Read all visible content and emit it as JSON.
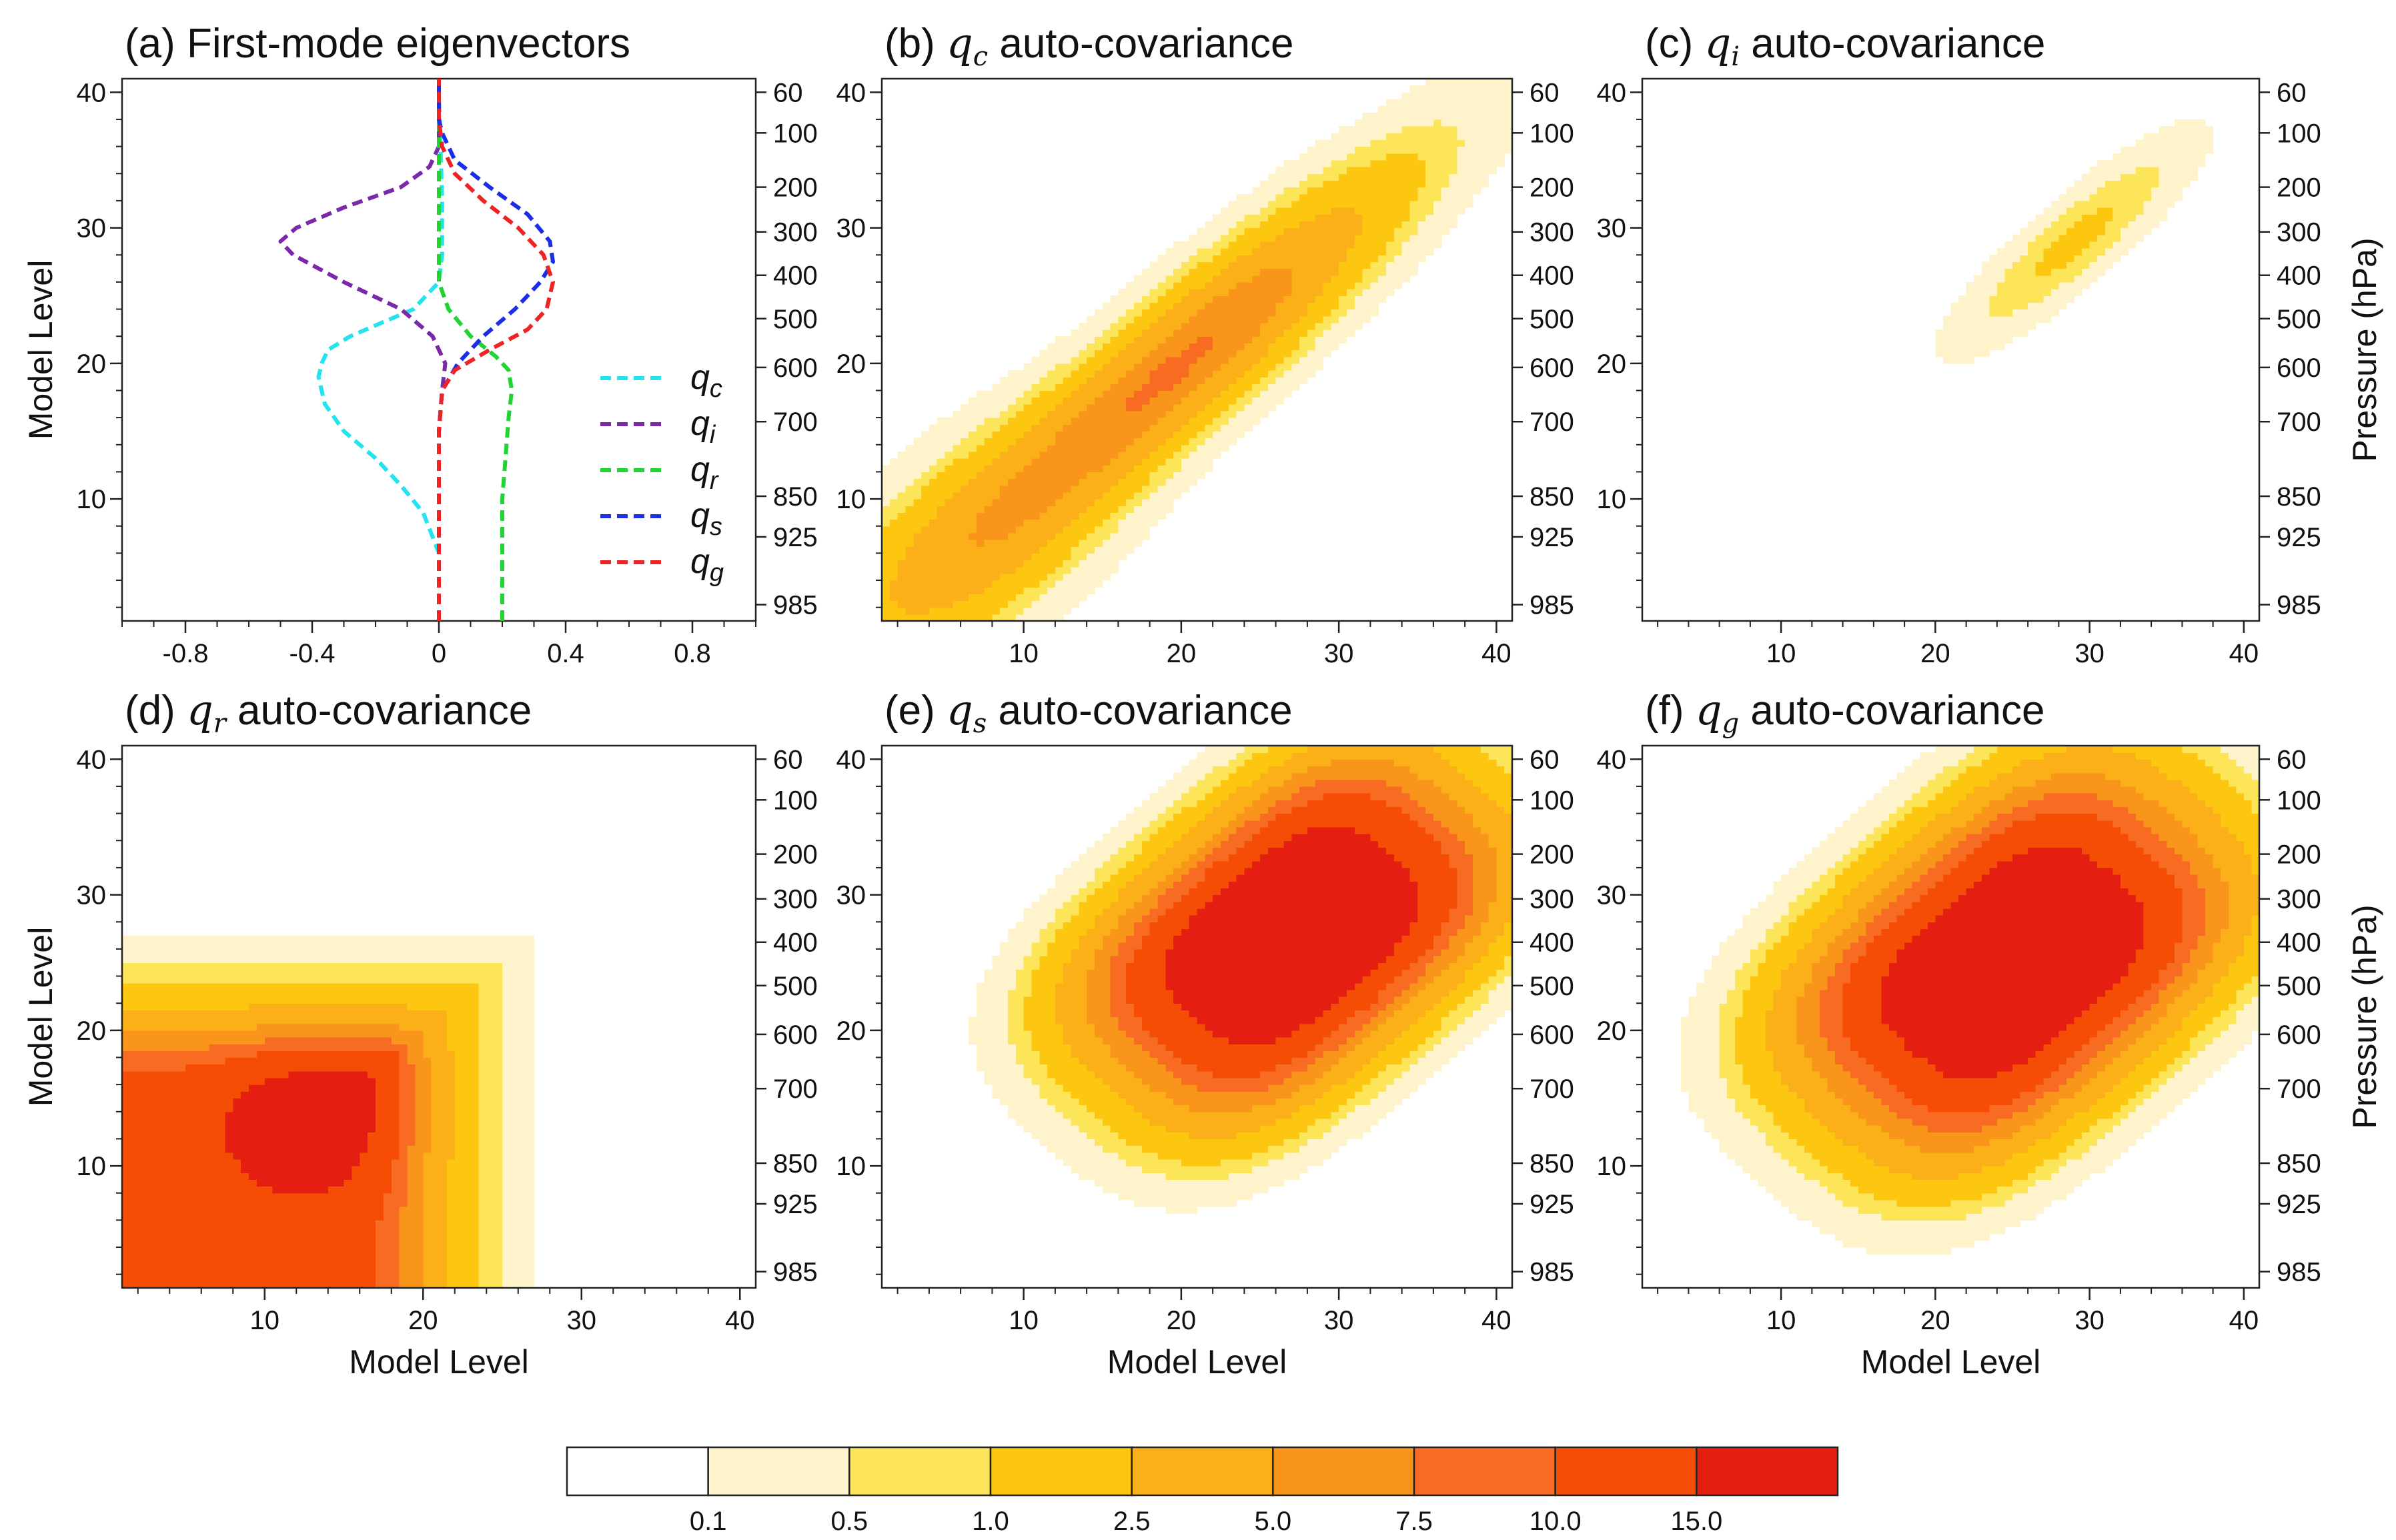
{
  "chart_data": [
    {
      "id": "a",
      "type": "line",
      "title_prefix": "(a)",
      "title": "First-mode eigenvectors",
      "xlabel": "",
      "ylabel": "Model Level",
      "xlim": [
        -1.0,
        1.0
      ],
      "ylim": [
        1,
        41
      ],
      "xticks": [
        "-0.8",
        "-0.4",
        "0",
        "0.4",
        "0.8"
      ],
      "xtick_values": [
        -0.8,
        -0.4,
        0,
        0.4,
        0.8
      ],
      "yticks": [
        "10",
        "20",
        "30",
        "40"
      ],
      "ytick_values": [
        10,
        20,
        30,
        40
      ],
      "right_axis_labels": [
        "60",
        "100",
        "200",
        "300",
        "400",
        "500",
        "600",
        "700",
        "850",
        "925",
        "985"
      ],
      "right_axis_levels": [
        40,
        37,
        33,
        29.7,
        26.5,
        23.3,
        19.7,
        15.7,
        10.2,
        7.2,
        2.2
      ],
      "series": [
        {
          "name": "q",
          "sub": "c",
          "color": "#22e3ee",
          "x": [
            0,
            0,
            -0.05,
            -0.12,
            -0.2,
            -0.3,
            -0.36,
            -0.38,
            -0.37,
            -0.35,
            -0.28,
            -0.18,
            -0.08,
            0,
            0.01,
            0.01,
            0
          ],
          "y": [
            1,
            6,
            9,
            11,
            13,
            15,
            17,
            19,
            20,
            21,
            22,
            23,
            24,
            26,
            28,
            32,
            40
          ]
        },
        {
          "name": "q",
          "sub": "i",
          "color": "#7a2aa8",
          "x": [
            0,
            0,
            0.01,
            0.02,
            -0.02,
            -0.12,
            -0.3,
            -0.46,
            -0.5,
            -0.45,
            -0.3,
            -0.12,
            -0.03,
            0,
            0
          ],
          "y": [
            1,
            15,
            18,
            20,
            22,
            24,
            26,
            28,
            29,
            30,
            31.5,
            33,
            34.5,
            36,
            41
          ]
        },
        {
          "name": "q",
          "sub": "r",
          "color": "#22d432",
          "x": [
            0.2,
            0.2,
            0.2,
            0.21,
            0.22,
            0.23,
            0.22,
            0.18,
            0.1,
            0.03,
            0,
            0,
            0
          ],
          "y": [
            1,
            6,
            10,
            13,
            16,
            18,
            19.5,
            20.5,
            22,
            24,
            26,
            30,
            41
          ]
        },
        {
          "name": "q",
          "sub": "s",
          "color": "#1a2ee6",
          "x": [
            0,
            0,
            0.01,
            0.06,
            0.14,
            0.24,
            0.32,
            0.36,
            0.35,
            0.28,
            0.16,
            0.05,
            0.01,
            0,
            0
          ],
          "y": [
            1,
            15,
            18,
            20,
            22,
            24,
            26,
            27.5,
            29,
            31,
            33,
            35,
            37,
            38,
            41
          ]
        },
        {
          "name": "q",
          "sub": "g",
          "color": "#ee2424",
          "x": [
            0,
            0,
            0.01,
            0.05,
            0.16,
            0.28,
            0.34,
            0.36,
            0.33,
            0.25,
            0.14,
            0.05,
            0.01,
            0,
            0
          ],
          "y": [
            1,
            15,
            18,
            19.5,
            21,
            22.5,
            24,
            26,
            28,
            30,
            32,
            34,
            36,
            38,
            41
          ]
        }
      ]
    },
    {
      "id": "b",
      "type": "heatmap",
      "title_prefix": "(b)",
      "var": "q",
      "var_sub": "c",
      "title_suffix": "auto-covariance",
      "xlabel": "",
      "ylabel": "",
      "right_label": "",
      "xlim": [
        1,
        41
      ],
      "ylim": [
        1,
        41
      ],
      "xticks": [
        "10",
        "20",
        "30",
        "40"
      ],
      "yticks": [
        "10",
        "20",
        "30",
        "40"
      ],
      "right_axis_labels": [
        "60",
        "100",
        "200",
        "300",
        "400",
        "500",
        "600",
        "700",
        "850",
        "925",
        "985"
      ],
      "peaks": [
        {
          "cx": 20,
          "cy": 20,
          "su": 10.5,
          "sv": 2.2,
          "rot": 45,
          "amp": 7.8
        },
        {
          "cx": 7,
          "cy": 7,
          "su": 7.0,
          "sv": 3.0,
          "rot": 45,
          "amp": 3.4
        }
      ]
    },
    {
      "id": "c",
      "type": "heatmap",
      "title_prefix": "(c)",
      "var": "q",
      "var_sub": "i",
      "title_suffix": "auto-covariance",
      "xlabel": "",
      "ylabel": "",
      "right_label": "Pressure (hPa)",
      "xlim": [
        1,
        41
      ],
      "ylim": [
        1,
        41
      ],
      "xticks": [
        "10",
        "20",
        "30",
        "40"
      ],
      "yticks": [
        "10",
        "20",
        "30",
        "40"
      ],
      "right_axis_labels": [
        "60",
        "100",
        "200",
        "300",
        "400",
        "500",
        "600",
        "700",
        "850",
        "925",
        "985"
      ],
      "peaks": [
        {
          "cx": 29,
          "cy": 29,
          "su": 5.5,
          "sv": 1.4,
          "rot": 45,
          "amp": 1.25
        }
      ]
    },
    {
      "id": "d",
      "type": "heatmap",
      "title_prefix": "(d)",
      "var": "q",
      "var_sub": "r",
      "title_suffix": "auto-covariance",
      "xlabel": "Model Level",
      "ylabel": "Model Level",
      "right_label": "",
      "xlim": [
        1,
        41
      ],
      "ylim": [
        1,
        41
      ],
      "xticks": [
        "10",
        "20",
        "30",
        "40"
      ],
      "yticks": [
        "10",
        "20",
        "30",
        "40"
      ],
      "right_axis_labels": [
        "60",
        "100",
        "200",
        "300",
        "400",
        "500",
        "600",
        "700",
        "850",
        "925",
        "985"
      ],
      "box": {
        "plateau": 13.0,
        "edge": 19.0,
        "edgeWidth": 1.8,
        "limit": 26.8,
        "peak": {
          "cx": 14,
          "cy": 14.5,
          "s": 4.2,
          "amp": 9.0
        }
      }
    },
    {
      "id": "e",
      "type": "heatmap",
      "title_prefix": "(e)",
      "var": "q",
      "var_sub": "s",
      "title_suffix": "auto-covariance",
      "xlabel": "Model Level",
      "ylabel": "",
      "right_label": "",
      "xlim": [
        1,
        41
      ],
      "ylim": [
        1,
        41
      ],
      "xticks": [
        "10",
        "20",
        "30",
        "40"
      ],
      "yticks": [
        "10",
        "20",
        "30",
        "40"
      ],
      "right_axis_labels": [
        "60",
        "100",
        "200",
        "300",
        "400",
        "500",
        "600",
        "700",
        "850",
        "925",
        "985"
      ],
      "peaks": [
        {
          "cx": 27,
          "cy": 27,
          "su": 10.0,
          "sv": 6.2,
          "rot": 45,
          "amp": 21.0,
          "power": 3.0
        }
      ]
    },
    {
      "id": "f",
      "type": "heatmap",
      "title_prefix": "(f)",
      "var": "q",
      "var_sub": "g",
      "title_suffix": "auto-covariance",
      "xlabel": "Model Level",
      "ylabel": "",
      "right_label": "Pressure (hPa)",
      "xlim": [
        1,
        41
      ],
      "ylim": [
        1,
        41
      ],
      "xticks": [
        "10",
        "20",
        "30",
        "40"
      ],
      "yticks": [
        "10",
        "20",
        "30",
        "40"
      ],
      "right_axis_labels": [
        "60",
        "100",
        "200",
        "300",
        "400",
        "500",
        "600",
        "700",
        "850",
        "925",
        "985"
      ],
      "peaks": [
        {
          "cx": 25,
          "cy": 25,
          "su": 10.5,
          "sv": 6.8,
          "rot": 45,
          "amp": 21.0,
          "power": 3.0
        }
      ]
    }
  ],
  "colorbar": {
    "levels": [
      0.1,
      0.5,
      1.0,
      2.5,
      5.0,
      7.5,
      10.0,
      15.0
    ],
    "labels": [
      "0.1",
      "0.5",
      "1.0",
      "2.5",
      "5.0",
      "7.5",
      "10.0",
      "15.0"
    ],
    "colors": [
      "#ffffff",
      "#fff3cc",
      "#fde55a",
      "#fcc611",
      "#fbaf19",
      "#fa951c",
      "#f86b22",
      "#f54d05",
      "#e41f12"
    ]
  }
}
